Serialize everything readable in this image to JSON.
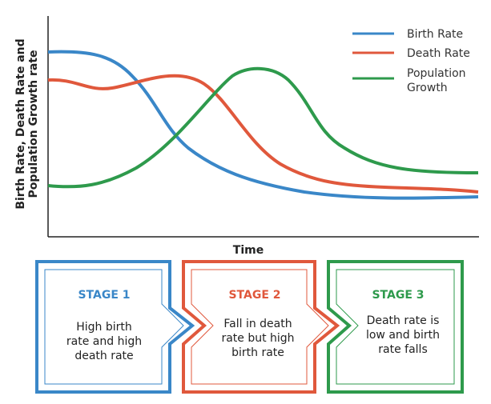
{
  "diagram": {
    "y_axis_label": [
      "Birth Rate, Death Rate and",
      "Population Growth rate"
    ],
    "x_axis_label": "Time",
    "legend": [
      {
        "label": [
          "Birth Rate"
        ]
      },
      {
        "label": [
          "Death Rate"
        ]
      },
      {
        "label": [
          "Population",
          "Growth"
        ]
      }
    ],
    "stages": [
      {
        "title": "STAGE 1",
        "lines": [
          "High birth",
          "rate and high",
          "death rate"
        ]
      },
      {
        "title": "STAGE 2",
        "lines": [
          "Fall in death",
          "rate but high",
          "birth rate"
        ]
      },
      {
        "title": "STAGE 3",
        "lines": [
          "Death rate is",
          "low and birth",
          "rate falls"
        ]
      }
    ]
  }
}
